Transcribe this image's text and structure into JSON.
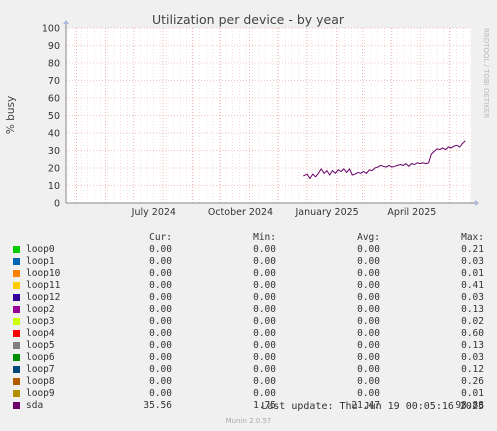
{
  "chart_data": {
    "type": "line",
    "title": "Utilization per device - by year",
    "ylabel": "% busy",
    "watermark": "RRDTOOL / TOBI OETIKER",
    "ylim": [
      0,
      100
    ],
    "yticks": [
      0,
      10,
      20,
      30,
      40,
      50,
      60,
      70,
      80,
      90,
      100
    ],
    "xlim": [
      "2024-04-20",
      "2025-06-24"
    ],
    "xticks": [
      {
        "label": "July 2024",
        "date": "2024-07-01"
      },
      {
        "label": "October 2024",
        "date": "2024-10-01"
      },
      {
        "label": "January 2025",
        "date": "2025-01-01"
      },
      {
        "label": "April 2025",
        "date": "2025-04-01"
      }
    ],
    "series": [
      {
        "name": "sda",
        "color": "#660066",
        "points": [
          [
            "2024-12-28",
            15.5
          ],
          [
            "2025-01-01",
            16.5
          ],
          [
            "2025-01-04",
            14.0
          ],
          [
            "2025-01-07",
            16.5
          ],
          [
            "2025-01-10",
            15.0
          ],
          [
            "2025-01-13",
            17.0
          ],
          [
            "2025-01-16",
            19.5
          ],
          [
            "2025-01-19",
            17.0
          ],
          [
            "2025-01-22",
            18.5
          ],
          [
            "2025-01-25",
            16.0
          ],
          [
            "2025-01-28",
            18.5
          ],
          [
            "2025-01-31",
            17.0
          ],
          [
            "2025-02-03",
            19.0
          ],
          [
            "2025-02-06",
            18.0
          ],
          [
            "2025-02-09",
            19.5
          ],
          [
            "2025-02-12",
            17.5
          ],
          [
            "2025-02-15",
            19.5
          ],
          [
            "2025-02-18",
            16.0
          ],
          [
            "2025-02-21",
            16.5
          ],
          [
            "2025-02-24",
            17.5
          ],
          [
            "2025-02-27",
            17.0
          ],
          [
            "2025-03-02",
            18.0
          ],
          [
            "2025-03-05",
            17.0
          ],
          [
            "2025-03-08",
            19.0
          ],
          [
            "2025-03-11",
            18.5
          ],
          [
            "2025-03-14",
            20.0
          ],
          [
            "2025-03-17",
            20.5
          ],
          [
            "2025-03-20",
            21.5
          ],
          [
            "2025-03-23",
            21.0
          ],
          [
            "2025-03-26",
            20.5
          ],
          [
            "2025-03-29",
            21.5
          ],
          [
            "2025-04-01",
            20.5
          ],
          [
            "2025-04-04",
            21.0
          ],
          [
            "2025-04-07",
            21.5
          ],
          [
            "2025-04-10",
            22.0
          ],
          [
            "2025-04-13",
            21.5
          ],
          [
            "2025-04-16",
            22.5
          ],
          [
            "2025-04-19",
            21.0
          ],
          [
            "2025-04-22",
            22.5
          ],
          [
            "2025-04-25",
            22.0
          ],
          [
            "2025-04-28",
            23.0
          ],
          [
            "2025-05-01",
            22.5
          ],
          [
            "2025-05-04",
            23.0
          ],
          [
            "2025-05-07",
            22.5
          ],
          [
            "2025-05-10",
            23.0
          ],
          [
            "2025-05-13",
            28.0
          ],
          [
            "2025-05-16",
            29.5
          ],
          [
            "2025-05-19",
            31.0
          ],
          [
            "2025-05-22",
            30.5
          ],
          [
            "2025-05-25",
            31.5
          ],
          [
            "2025-05-28",
            30.5
          ],
          [
            "2025-05-31",
            32.0
          ],
          [
            "2025-06-03",
            31.5
          ],
          [
            "2025-06-06",
            32.5
          ],
          [
            "2025-06-09",
            33.0
          ],
          [
            "2025-06-12",
            32.0
          ],
          [
            "2025-06-15",
            34.0
          ],
          [
            "2025-06-18",
            35.56
          ]
        ]
      },
      {
        "name": "loop0",
        "color": "#00cc00",
        "points": [
          [
            "2024-12-28",
            0.0
          ],
          [
            "2025-06-18",
            0.0
          ]
        ]
      }
    ]
  },
  "legend": {
    "headers": {
      "cur": "Cur:",
      "min": "Min:",
      "avg": "Avg:",
      "max": "Max:"
    },
    "rows": [
      {
        "name": "loop0",
        "color": "#00cc00",
        "cur": "0.00",
        "min": "0.00",
        "avg": "0.00",
        "max": "0.21"
      },
      {
        "name": "loop1",
        "color": "#0066b3",
        "cur": "0.00",
        "min": "0.00",
        "avg": "0.00",
        "max": "0.03"
      },
      {
        "name": "loop10",
        "color": "#ff8000",
        "cur": "0.00",
        "min": "0.00",
        "avg": "0.00",
        "max": "0.01"
      },
      {
        "name": "loop11",
        "color": "#ffcc00",
        "cur": "0.00",
        "min": "0.00",
        "avg": "0.00",
        "max": "0.41"
      },
      {
        "name": "loop12",
        "color": "#330099",
        "cur": "0.00",
        "min": "0.00",
        "avg": "0.00",
        "max": "0.03"
      },
      {
        "name": "loop2",
        "color": "#990099",
        "cur": "0.00",
        "min": "0.00",
        "avg": "0.00",
        "max": "0.13"
      },
      {
        "name": "loop3",
        "color": "#ccff00",
        "cur": "0.00",
        "min": "0.00",
        "avg": "0.00",
        "max": "0.02"
      },
      {
        "name": "loop4",
        "color": "#ff0000",
        "cur": "0.00",
        "min": "0.00",
        "avg": "0.00",
        "max": "0.60"
      },
      {
        "name": "loop5",
        "color": "#808080",
        "cur": "0.00",
        "min": "0.00",
        "avg": "0.00",
        "max": "0.13"
      },
      {
        "name": "loop6",
        "color": "#008f00",
        "cur": "0.00",
        "min": "0.00",
        "avg": "0.00",
        "max": "0.03"
      },
      {
        "name": "loop7",
        "color": "#00487d",
        "cur": "0.00",
        "min": "0.00",
        "avg": "0.00",
        "max": "0.12"
      },
      {
        "name": "loop8",
        "color": "#b35a00",
        "cur": "0.00",
        "min": "0.00",
        "avg": "0.00",
        "max": "0.26"
      },
      {
        "name": "loop9",
        "color": "#b38f00",
        "cur": "0.00",
        "min": "0.00",
        "avg": "0.00",
        "max": "0.01"
      },
      {
        "name": "sda",
        "color": "#6b006b",
        "cur": "35.56",
        "min": "1.75",
        "avg": "21.47",
        "max": "98.88"
      }
    ]
  },
  "footer": {
    "last_update": "Last update: Thu Jun 19 00:05:16 2025",
    "version": "Munin 2.0.57"
  }
}
